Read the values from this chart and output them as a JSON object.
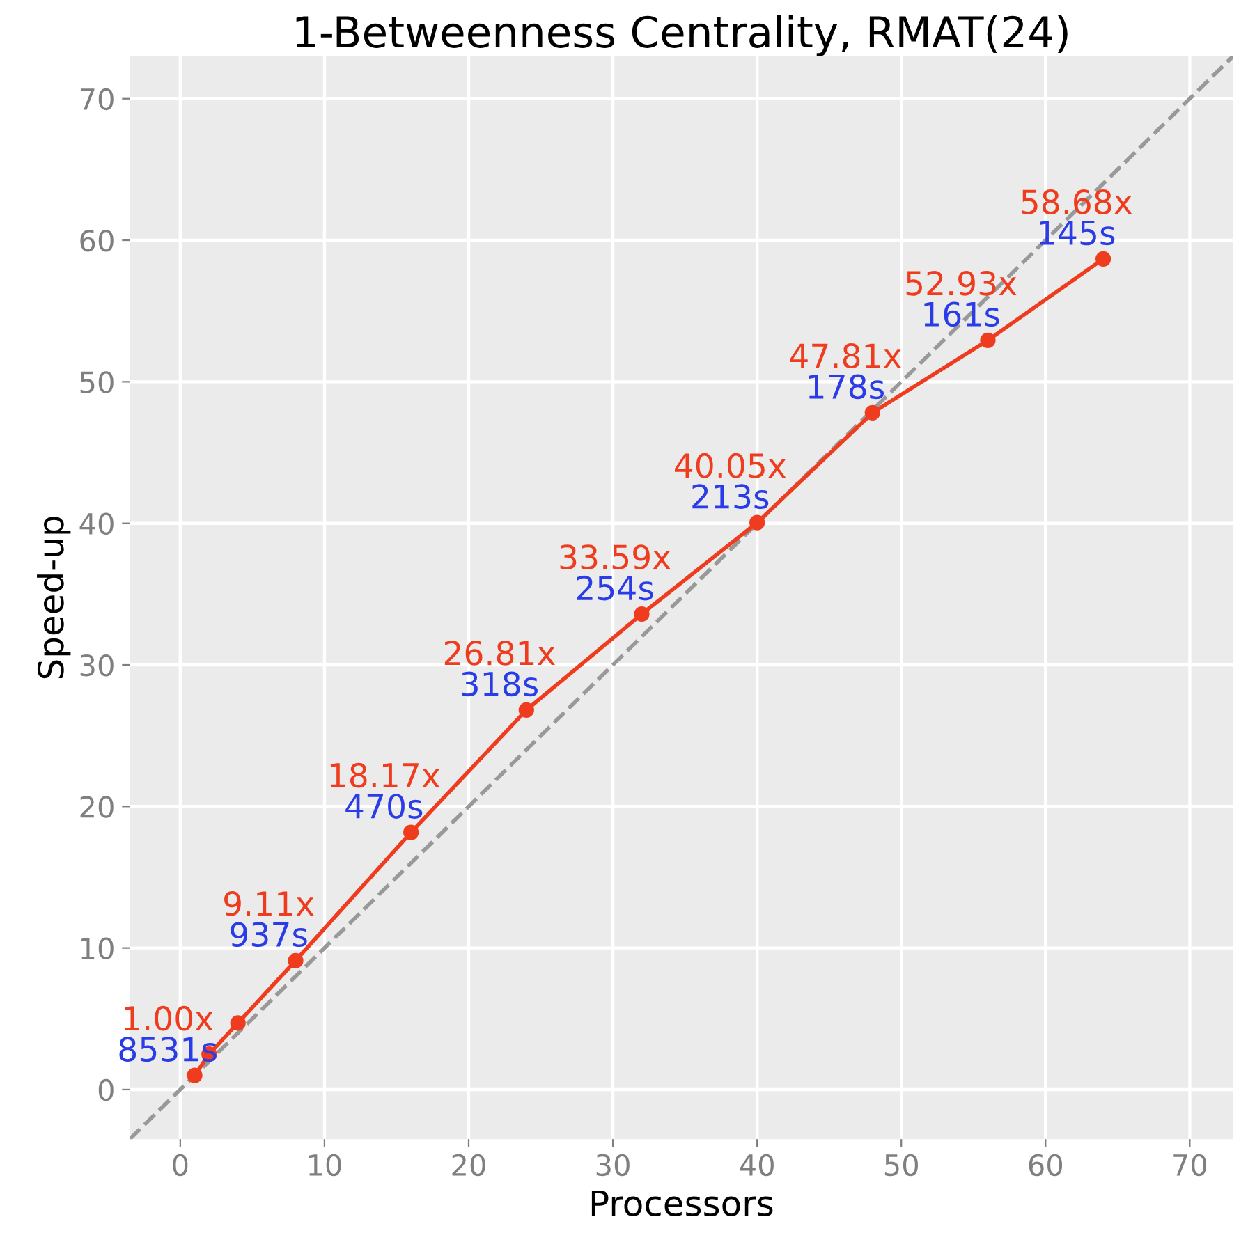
{
  "chart_data": {
    "type": "line",
    "title": "1-Betweenness Centrality, RMAT(24)",
    "xlabel": "Processors",
    "ylabel": "Speed-up",
    "xlim": [
      -3.5,
      73
    ],
    "ylim": [
      -3.5,
      73
    ],
    "xticks": [
      0,
      10,
      20,
      30,
      40,
      50,
      60,
      70
    ],
    "yticks": [
      0,
      10,
      20,
      30,
      40,
      50,
      60,
      70
    ],
    "grid": true,
    "marker": "circle",
    "series": [
      {
        "x": [
          -3.5,
          73
        ],
        "values": [
          -3.5,
          73
        ],
        "color": "#999999",
        "line_style": "dashed",
        "marker": "none"
      },
      {
        "x": [
          1,
          2,
          4,
          8,
          16,
          24,
          32,
          40,
          48,
          56,
          64
        ],
        "values": [
          1.0,
          2.5,
          4.7,
          9.11,
          18.17,
          26.81,
          33.59,
          40.05,
          47.81,
          52.93,
          58.68
        ],
        "color": "#f03c1e",
        "line_style": "solid",
        "value_labels": [
          "1.00x",
          null,
          null,
          "9.11x",
          "18.17x",
          "26.81x",
          "33.59x",
          "40.05x",
          "47.81x",
          "52.93x",
          "58.68x"
        ]
      }
    ],
    "annotations": [
      {
        "text": "8531s",
        "x": 1,
        "y": 1.0
      },
      {
        "text": "937s",
        "x": 8,
        "y": 9.11
      },
      {
        "text": "470s",
        "x": 16,
        "y": 18.17
      },
      {
        "text": "318s",
        "x": 24,
        "y": 26.81
      },
      {
        "text": "254s",
        "x": 32,
        "y": 33.59
      },
      {
        "text": "213s",
        "x": 40,
        "y": 40.05
      },
      {
        "text": "178s",
        "x": 48,
        "y": 47.81
      },
      {
        "text": "161s",
        "x": 56,
        "y": 52.93
      },
      {
        "text": "145s",
        "x": 64,
        "y": 58.68
      }
    ]
  }
}
